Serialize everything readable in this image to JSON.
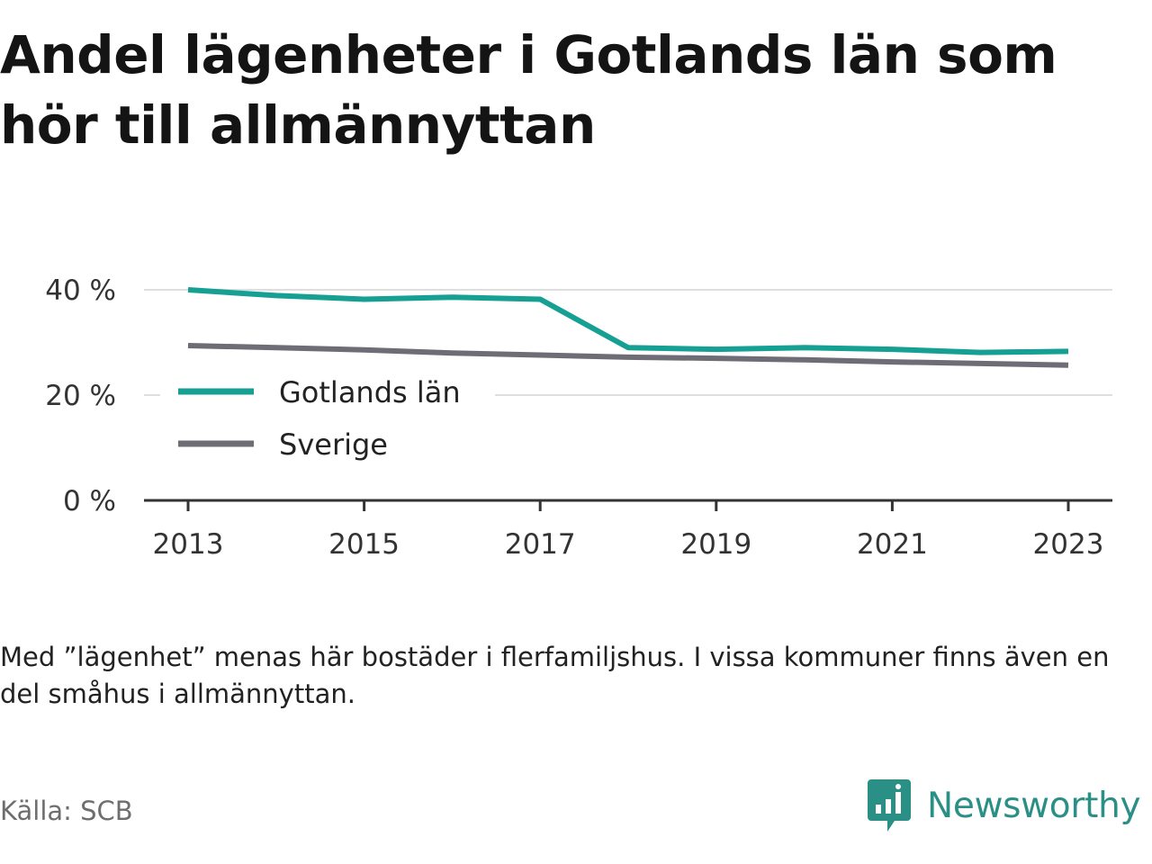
{
  "title": "Andel lägenheter i Gotlands län som hör till allmännyttan",
  "note": "Med ”lägenhet” menas här bostäder i flerfamiljshus. I vissa kommuner finns även en del småhus i allmännyttan.",
  "source": "Källa: SCB",
  "brand": {
    "name": "Newsworthy",
    "icon": "newsworthy-logo-icon",
    "color": "#2a8f84"
  },
  "chart_data": {
    "type": "line",
    "x": [
      2013,
      2014,
      2015,
      2016,
      2017,
      2018,
      2019,
      2020,
      2021,
      2022,
      2023
    ],
    "x_ticks": [
      2013,
      2015,
      2017,
      2019,
      2021,
      2023
    ],
    "y_ticks": [
      0,
      20,
      40
    ],
    "y_tick_labels": [
      "0 %",
      "20 %",
      "40 %"
    ],
    "ylim": [
      0,
      40
    ],
    "grid": "horizontal",
    "legend_position": "left-middle",
    "series": [
      {
        "name": "Gotlands län",
        "color": "#16a093",
        "values": [
          40.0,
          38.9,
          38.2,
          38.6,
          38.2,
          29.0,
          28.7,
          29.0,
          28.7,
          28.1,
          28.3
        ]
      },
      {
        "name": "Sverige",
        "color": "#6e6d75",
        "values": [
          29.4,
          29.0,
          28.6,
          28.0,
          27.6,
          27.2,
          27.0,
          26.7,
          26.3,
          26.0,
          25.7
        ]
      }
    ]
  }
}
